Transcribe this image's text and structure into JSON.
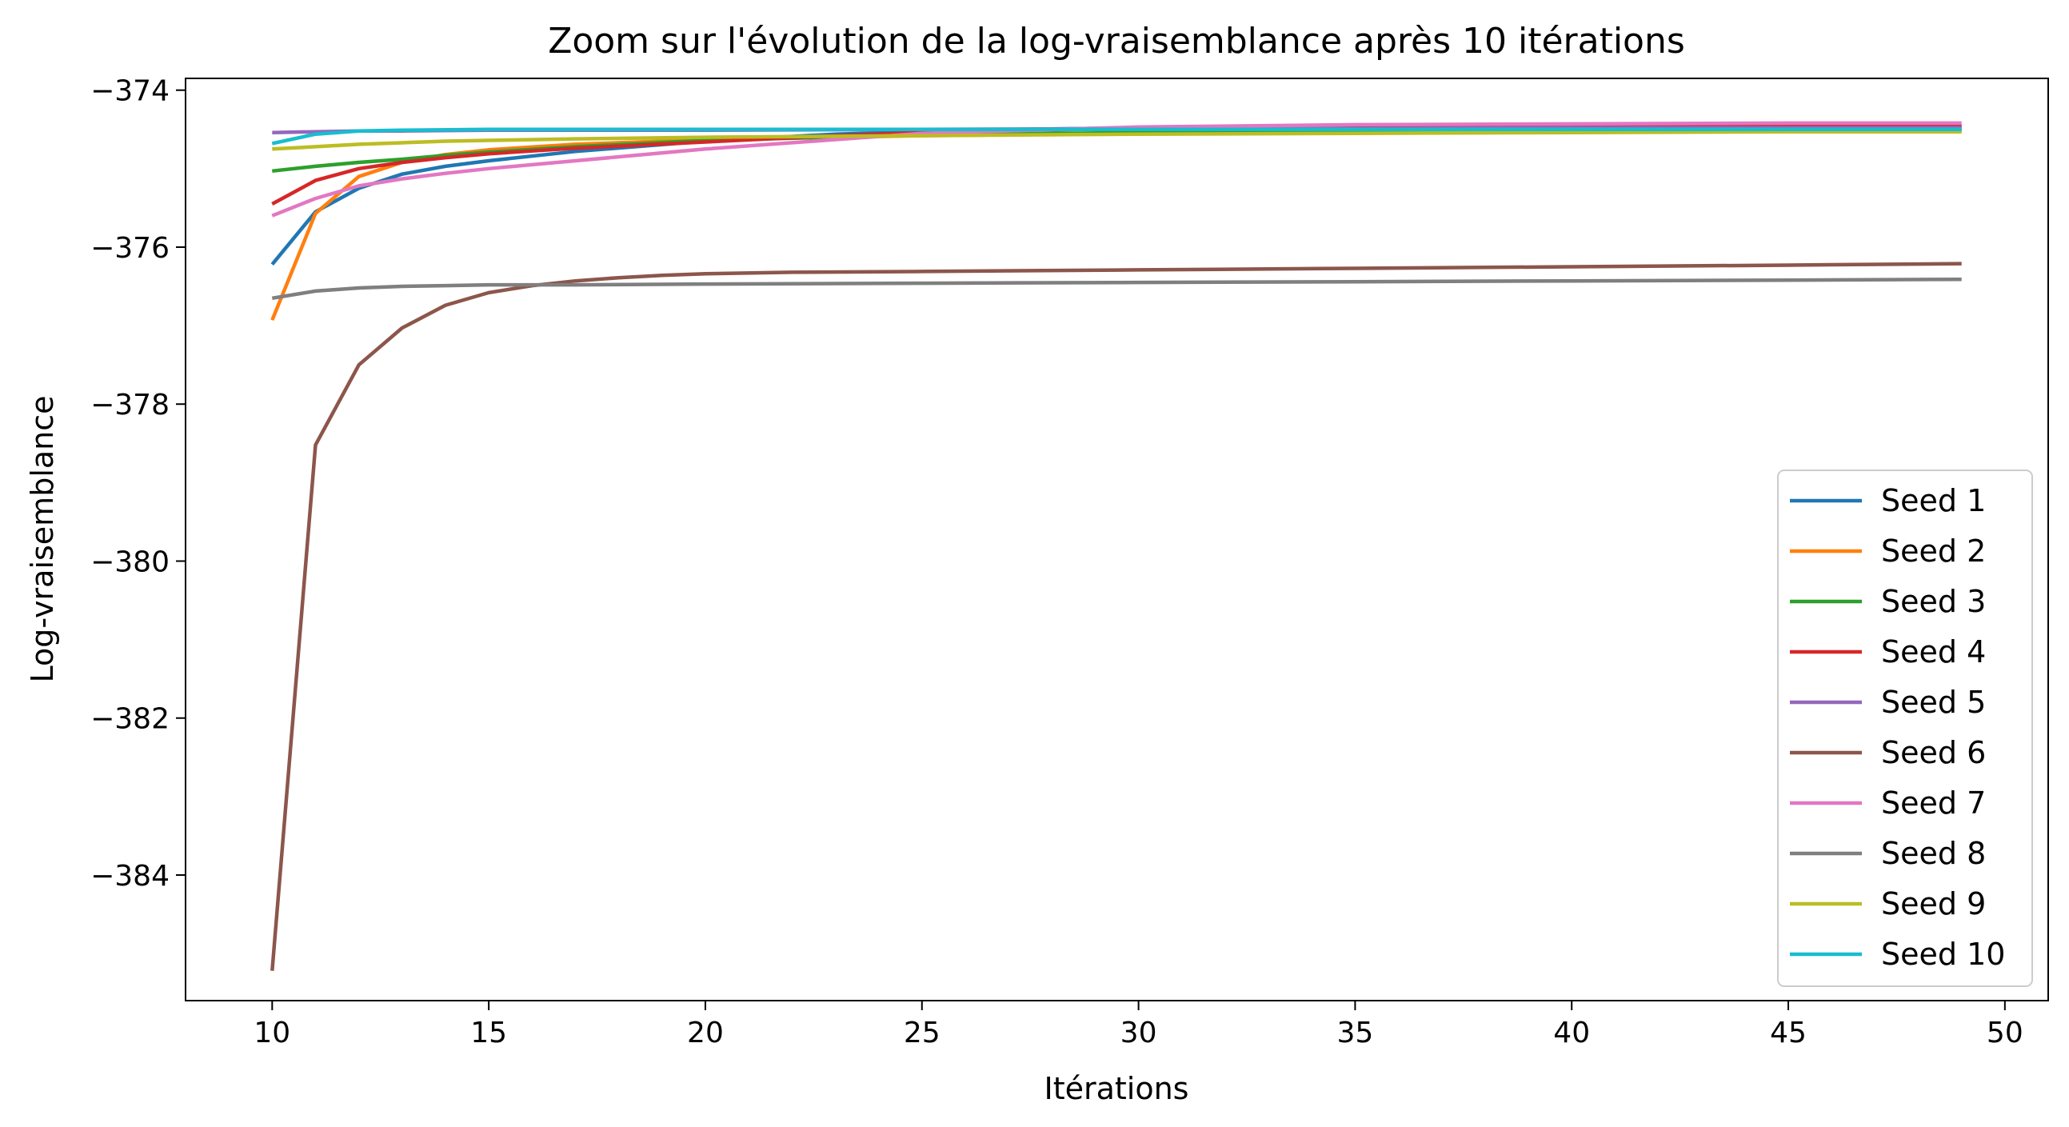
{
  "chart_data": {
    "type": "line",
    "title": "Zoom sur l'évolution de la log-vraisemblance après 10 itérations",
    "xlabel": "Itérations",
    "ylabel": "Log-vraisemblance",
    "xlim": [
      8,
      51
    ],
    "ylim": [
      -385.6,
      -373.85
    ],
    "xticks": [
      10,
      15,
      20,
      25,
      30,
      35,
      40,
      45,
      50
    ],
    "yticks": [
      -384,
      -382,
      -380,
      -378,
      -376,
      -374
    ],
    "grid": false,
    "legend_position": "lower right",
    "series": [
      {
        "name": "Seed 1",
        "color": "#1f77b4",
        "x": [
          10,
          11,
          12,
          13,
          14,
          15,
          17,
          20,
          23,
          26,
          30,
          35,
          40,
          45,
          49
        ],
        "y": [
          -376.22,
          -375.55,
          -375.25,
          -375.07,
          -374.97,
          -374.9,
          -374.78,
          -374.65,
          -374.56,
          -374.51,
          -374.48,
          -374.47,
          -374.46,
          -374.46,
          -374.46
        ]
      },
      {
        "name": "Seed 2",
        "color": "#ff7f0e",
        "x": [
          10,
          11,
          12,
          13,
          14,
          15,
          17,
          20,
          25,
          30,
          35,
          40,
          45,
          49
        ],
        "y": [
          -376.93,
          -375.57,
          -375.1,
          -374.92,
          -374.82,
          -374.76,
          -374.69,
          -374.63,
          -374.58,
          -374.55,
          -374.54,
          -374.53,
          -374.52,
          -374.52
        ]
      },
      {
        "name": "Seed 3",
        "color": "#2ca02c",
        "x": [
          10,
          11,
          12,
          13,
          14,
          15,
          17,
          20,
          25,
          30,
          35,
          40,
          45,
          49
        ],
        "y": [
          -375.03,
          -374.97,
          -374.92,
          -374.88,
          -374.83,
          -374.79,
          -374.72,
          -374.64,
          -374.57,
          -374.54,
          -374.52,
          -374.51,
          -374.5,
          -374.5
        ]
      },
      {
        "name": "Seed 4",
        "color": "#d62728",
        "x": [
          10,
          11,
          12,
          13,
          14,
          15,
          17,
          20,
          23,
          26,
          30,
          35,
          40,
          45,
          49
        ],
        "y": [
          -375.45,
          -375.15,
          -375.0,
          -374.92,
          -374.86,
          -374.81,
          -374.74,
          -374.66,
          -374.58,
          -374.52,
          -374.49,
          -374.47,
          -374.46,
          -374.46,
          -374.46
        ]
      },
      {
        "name": "Seed 5",
        "color": "#9467bd",
        "x": [
          10,
          11,
          12,
          13,
          15,
          20,
          25,
          30,
          35,
          40,
          45,
          49
        ],
        "y": [
          -374.54,
          -374.53,
          -374.52,
          -374.52,
          -374.51,
          -374.51,
          -374.5,
          -374.49,
          -374.49,
          -374.48,
          -374.48,
          -374.48
        ]
      },
      {
        "name": "Seed 6",
        "color": "#8c564b",
        "x": [
          10,
          11,
          12,
          13,
          14,
          15,
          16,
          17,
          18,
          19,
          20,
          22,
          25,
          30,
          35,
          40,
          45,
          49
        ],
        "y": [
          -385.22,
          -378.52,
          -377.5,
          -377.03,
          -376.74,
          -376.58,
          -376.49,
          -376.43,
          -376.39,
          -376.36,
          -376.34,
          -376.32,
          -376.31,
          -376.29,
          -376.27,
          -376.25,
          -376.23,
          -376.21
        ]
      },
      {
        "name": "Seed 7",
        "color": "#e377c2",
        "x": [
          10,
          11,
          12,
          13,
          14,
          15,
          17,
          20,
          23,
          25,
          30,
          35,
          40,
          45,
          49
        ],
        "y": [
          -375.6,
          -375.38,
          -375.22,
          -375.13,
          -375.06,
          -375.0,
          -374.9,
          -374.75,
          -374.63,
          -374.55,
          -374.47,
          -374.44,
          -374.43,
          -374.42,
          -374.42
        ]
      },
      {
        "name": "Seed 8",
        "color": "#7f7f7f",
        "x": [
          10,
          11,
          12,
          13,
          14,
          15,
          17,
          20,
          25,
          30,
          35,
          40,
          45,
          49
        ],
        "y": [
          -376.65,
          -376.56,
          -376.52,
          -376.5,
          -376.49,
          -376.48,
          -376.48,
          -376.47,
          -376.46,
          -376.45,
          -376.44,
          -376.43,
          -376.42,
          -376.41
        ]
      },
      {
        "name": "Seed 9",
        "color": "#bcbd22",
        "x": [
          10,
          11,
          12,
          13,
          14,
          15,
          17,
          20,
          25,
          30,
          35,
          40,
          45,
          49
        ],
        "y": [
          -374.75,
          -374.72,
          -374.69,
          -374.67,
          -374.65,
          -374.64,
          -374.62,
          -374.6,
          -374.58,
          -374.56,
          -374.55,
          -374.54,
          -374.53,
          -374.53
        ]
      },
      {
        "name": "Seed 10",
        "color": "#17becf",
        "x": [
          10,
          11,
          12,
          13,
          15,
          20,
          25,
          30,
          35,
          40,
          45,
          49
        ],
        "y": [
          -374.68,
          -374.56,
          -374.52,
          -374.51,
          -374.5,
          -374.5,
          -374.5,
          -374.5,
          -374.5,
          -374.5,
          -374.5,
          -374.5
        ]
      }
    ]
  }
}
